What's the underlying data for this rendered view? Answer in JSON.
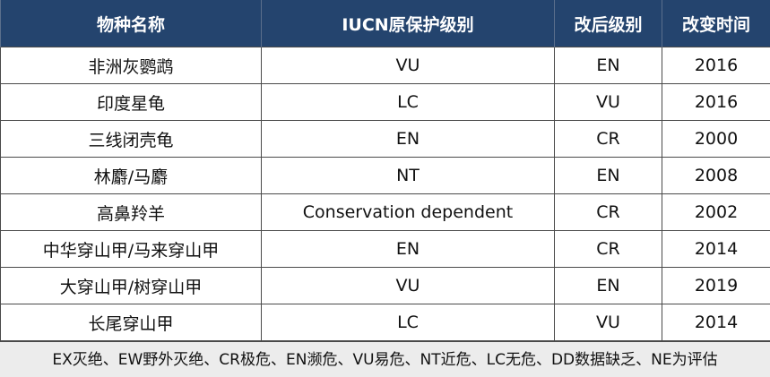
{
  "table": {
    "headers": [
      "物种名称",
      "IUCN原保护级别",
      "改后级别",
      "改变时间"
    ],
    "rows": [
      [
        "非洲灰鹦鹉",
        "VU",
        "EN",
        "2016"
      ],
      [
        "印度星龟",
        "LC",
        "VU",
        "2016"
      ],
      [
        "三线闭壳龟",
        "EN",
        "CR",
        "2000"
      ],
      [
        "林麝/马麝",
        "NT",
        "EN",
        "2008"
      ],
      [
        "高鼻羚羊",
        "Conservation dependent",
        "CR",
        "2002"
      ],
      [
        "中华穿山甲/马来穿山甲",
        "EN",
        "CR",
        "2014"
      ],
      [
        "大穿山甲/树穿山甲",
        "VU",
        "EN",
        "2019"
      ],
      [
        "长尾穿山甲",
        "LC",
        "VU",
        "2014"
      ]
    ]
  },
  "footnote": "EX灭绝、EW野外灭绝、CR极危、EN濒危、VU易危、NT近危、LC无危、DD数据缺乏、NE为评估",
  "colors": {
    "header_bg": "#24446e",
    "header_text": "#ffffff",
    "footnote_bg": "#ececec"
  }
}
